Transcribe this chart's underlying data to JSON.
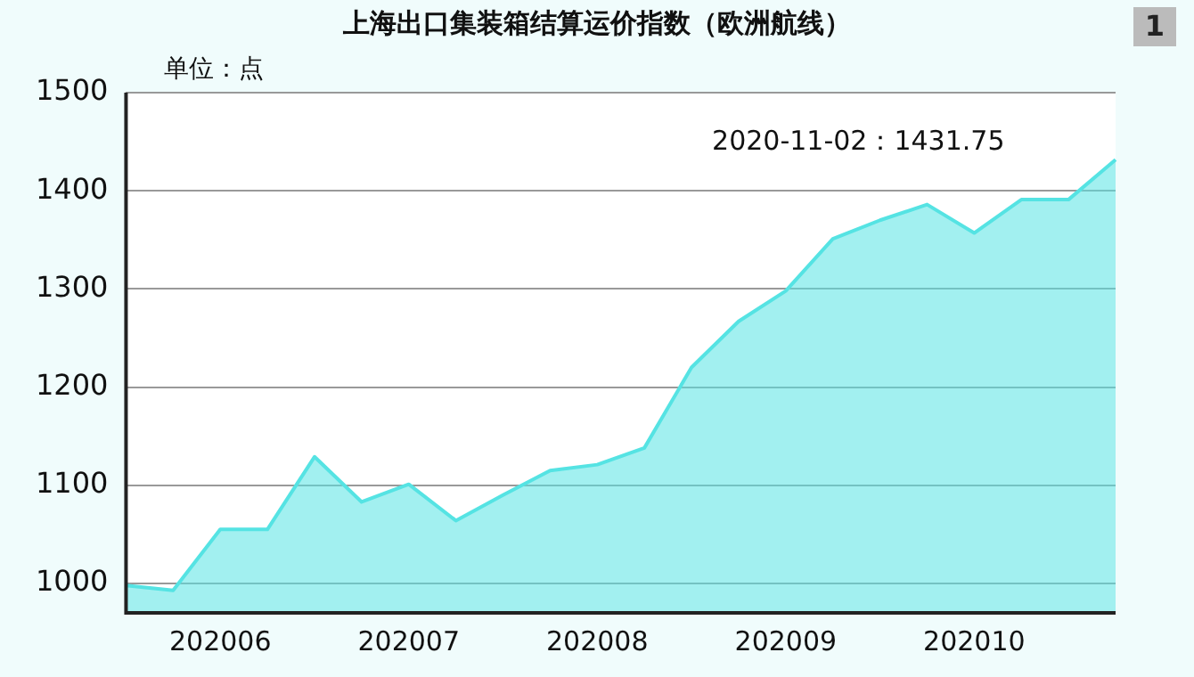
{
  "chart_data": {
    "type": "area",
    "title": "上海出口集装箱结算运价指数（欧洲航线）",
    "ylabel": "单位：点",
    "categories": [
      null,
      null,
      "202006",
      null,
      null,
      null,
      "202007",
      null,
      null,
      null,
      "202008",
      null,
      null,
      null,
      "202009",
      null,
      null,
      null,
      "202010",
      null,
      null,
      null
    ],
    "series": [
      {
        "color": "#55e3e3",
        "values": [
          998,
          993,
          1055,
          1055,
          1129,
          1083,
          1101,
          1064,
          1090,
          1115,
          1121,
          1138,
          1220,
          1267,
          1298,
          1351,
          1370,
          1386,
          1357,
          1391,
          1391,
          1431.75
        ]
      }
    ],
    "ylim": [
      970,
      1500
    ],
    "yticks": [
      1000,
      1100,
      1200,
      1300,
      1400,
      1500
    ],
    "grid": "y",
    "legend": false,
    "annotations": [
      "2020-11-02：1431.75",
      "1"
    ]
  }
}
